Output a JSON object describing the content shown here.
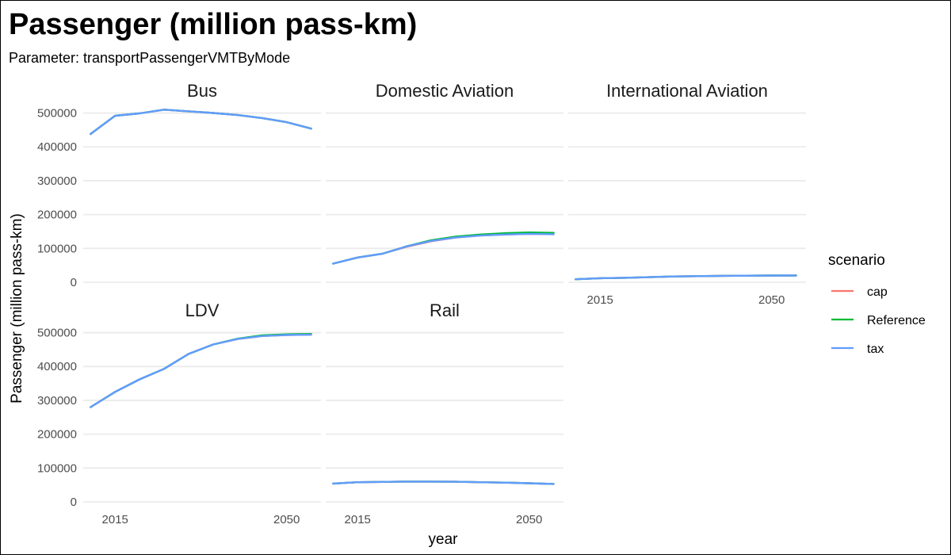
{
  "chart_data": {
    "type": "line",
    "title": "Passenger (million pass-km)",
    "subtitle": "Parameter: transportPassengerVMTByMode",
    "xlabel": "year",
    "ylabel": "Passenger (million pass-km)",
    "x": [
      2010,
      2015,
      2020,
      2025,
      2030,
      2035,
      2040,
      2045,
      2050,
      2055
    ],
    "xticks": [
      2015,
      2050
    ],
    "yticks": [
      0,
      100000,
      200000,
      300000,
      400000,
      500000
    ],
    "ylim": [
      0,
      520000
    ],
    "grid": true,
    "legend": {
      "title": "scenario",
      "position": "right",
      "entries": [
        {
          "name": "cap",
          "color": "#f8766d"
        },
        {
          "name": "Reference",
          "color": "#00ba38"
        },
        {
          "name": "tax",
          "color": "#619cff"
        }
      ]
    },
    "panels": [
      {
        "name": "Bus",
        "series": [
          {
            "name": "cap",
            "values": [
              438000,
              492000,
              499000,
              510000,
              505000,
              500000,
              494000,
              485000,
              473000,
              454000
            ]
          },
          {
            "name": "Reference",
            "values": [
              438000,
              492000,
              499000,
              510000,
              505000,
              500000,
              494000,
              485000,
              473000,
              454000
            ]
          },
          {
            "name": "tax",
            "values": [
              438000,
              492000,
              499000,
              510000,
              505000,
              500000,
              494000,
              485000,
              473000,
              454000
            ]
          }
        ]
      },
      {
        "name": "Domestic Aviation",
        "series": [
          {
            "name": "cap",
            "values": [
              55000,
              73000,
              84000,
              105000,
              121000,
              132000,
              138000,
              141000,
              143000,
              142000
            ]
          },
          {
            "name": "Reference",
            "values": [
              55000,
              73000,
              84000,
              106000,
              124000,
              135000,
              141000,
              145000,
              147000,
              146000
            ]
          },
          {
            "name": "tax",
            "values": [
              55000,
              73000,
              84000,
              106000,
              122000,
              132000,
              138000,
              141000,
              143000,
              142000
            ]
          }
        ]
      },
      {
        "name": "International Aviation",
        "series": [
          {
            "name": "cap",
            "values": [
              9000,
              12000,
              13000,
              15000,
              17000,
              18000,
              19000,
              19500,
              20000,
              20000
            ]
          },
          {
            "name": "Reference",
            "values": [
              9000,
              12000,
              13000,
              15000,
              17000,
              18000,
              19000,
              19500,
              20000,
              20000
            ]
          },
          {
            "name": "tax",
            "values": [
              9000,
              12000,
              13000,
              15000,
              17000,
              18000,
              19000,
              19500,
              20000,
              20000
            ]
          }
        ]
      },
      {
        "name": "LDV",
        "series": [
          {
            "name": "cap",
            "values": [
              280000,
              325000,
              362000,
              393000,
              437000,
              465000,
              481000,
              490000,
              493000,
              494000
            ]
          },
          {
            "name": "Reference",
            "values": [
              280000,
              325000,
              362000,
              393000,
              437000,
              465000,
              482000,
              492000,
              495000,
              496000
            ]
          },
          {
            "name": "tax",
            "values": [
              280000,
              325000,
              362000,
              393000,
              437000,
              465000,
              481000,
              490000,
              493000,
              494000
            ]
          }
        ]
      },
      {
        "name": "Rail",
        "series": [
          {
            "name": "cap",
            "values": [
              54000,
              58000,
              59000,
              60000,
              60000,
              59500,
              58000,
              57000,
              55000,
              53000
            ]
          },
          {
            "name": "Reference",
            "values": [
              54000,
              58000,
              59000,
              60000,
              60000,
              59500,
              58000,
              57000,
              55000,
              53000
            ]
          },
          {
            "name": "tax",
            "values": [
              54000,
              58000,
              59000,
              60000,
              60000,
              59500,
              58000,
              57000,
              55000,
              53000
            ]
          }
        ]
      }
    ]
  }
}
